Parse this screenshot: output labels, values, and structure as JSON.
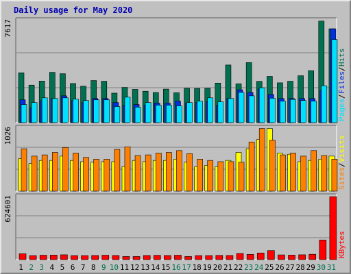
{
  "title": "Daily usage for May 2020",
  "colors": {
    "hits": "#007050",
    "files": "#0030e0",
    "pages": "#00e0ff",
    "visits": "#ffff00",
    "sites": "#ff8000",
    "kbytes": "#ff0000",
    "plot_bg": "#c0c0c0",
    "grid": "#808080",
    "weekday_label": "#000000",
    "weekend_label": "#007050"
  },
  "chart_data": [
    {
      "type": "bar",
      "name": "hits-files-pages",
      "ymax_label": "7617",
      "ylim": [
        0,
        7617
      ],
      "legend": [
        {
          "label": "Hits",
          "color": "#007050"
        },
        {
          "label": "Files",
          "color": "#0030e0"
        },
        {
          "label": "Pages",
          "color": "#00e0ff"
        }
      ],
      "categories": [
        "1",
        "2",
        "3",
        "4",
        "5",
        "6",
        "7",
        "8",
        "9",
        "10",
        "11",
        "12",
        "13",
        "14",
        "15",
        "16",
        "17",
        "18",
        "19",
        "20",
        "21",
        "22",
        "23",
        "24",
        "25",
        "26",
        "27",
        "28",
        "29",
        "30",
        "31"
      ],
      "weekend_days": [
        "2",
        "3",
        "9",
        "10",
        "16",
        "17",
        "23",
        "24",
        "30",
        "31"
      ],
      "series": [
        {
          "name": "Hits",
          "values": [
            3720,
            2800,
            3100,
            3750,
            3650,
            2920,
            2720,
            3140,
            3090,
            2200,
            2630,
            2480,
            2340,
            2250,
            2500,
            2230,
            2560,
            2550,
            2560,
            2950,
            4300,
            2900,
            4480,
            3080,
            3450,
            2970,
            3090,
            3500,
            3880,
            7580,
            7000
          ]
        },
        {
          "name": "Files",
          "values": [
            1700,
            1100,
            1650,
            1800,
            2000,
            1650,
            1500,
            1800,
            1800,
            1500,
            1300,
            1350,
            1300,
            1450,
            1450,
            1600,
            1450,
            1500,
            1550,
            1300,
            1800,
            2450,
            2250,
            2500,
            2100,
            1800,
            1800,
            1800,
            1800,
            2400,
            7000
          ]
        },
        {
          "name": "Pages",
          "values": [
            1350,
            1500,
            1850,
            1800,
            1850,
            1750,
            1650,
            1700,
            1700,
            1200,
            1900,
            1150,
            1500,
            1300,
            1300,
            1250,
            1500,
            1600,
            1850,
            1550,
            1800,
            2250,
            2000,
            2600,
            1820,
            1600,
            1730,
            1650,
            1600,
            2750,
            6200
          ]
        }
      ]
    },
    {
      "type": "bar",
      "name": "visits-sites",
      "ymax_label": "1026",
      "ylim": [
        0,
        1026
      ],
      "legend": [
        {
          "label": "Visits",
          "color": "#ffff00"
        },
        {
          "label": "Sites",
          "color": "#ff8000"
        }
      ],
      "categories": [
        "1",
        "2",
        "3",
        "4",
        "5",
        "6",
        "7",
        "8",
        "9",
        "10",
        "11",
        "12",
        "13",
        "14",
        "15",
        "16",
        "17",
        "18",
        "19",
        "20",
        "21",
        "22",
        "23",
        "24",
        "25",
        "26",
        "27",
        "28",
        "29",
        "30",
        "31"
      ],
      "series": [
        {
          "name": "Visits",
          "values": [
            530,
            450,
            500,
            500,
            570,
            500,
            480,
            470,
            480,
            480,
            400,
            500,
            480,
            500,
            500,
            520,
            470,
            400,
            420,
            400,
            500,
            630,
            690,
            840,
            1020,
            620,
            600,
            480,
            500,
            520,
            570
          ]
        },
        {
          "name": "Sites",
          "values": [
            690,
            570,
            590,
            630,
            710,
            620,
            550,
            520,
            520,
            680,
            720,
            580,
            590,
            620,
            630,
            660,
            610,
            520,
            500,
            480,
            480,
            470,
            800,
            1020,
            830,
            590,
            620,
            570,
            660,
            580,
            520
          ]
        }
      ]
    },
    {
      "type": "bar",
      "name": "kbytes",
      "ymax_label": "624601",
      "ylim": [
        0,
        624601
      ],
      "legend": [
        {
          "label": "KBytes",
          "color": "#ff0000"
        }
      ],
      "categories": [
        "1",
        "2",
        "3",
        "4",
        "5",
        "6",
        "7",
        "8",
        "9",
        "10",
        "11",
        "12",
        "13",
        "14",
        "15",
        "16",
        "17",
        "18",
        "19",
        "20",
        "21",
        "22",
        "23",
        "24",
        "25",
        "26",
        "27",
        "28",
        "29",
        "30",
        "31"
      ],
      "series": [
        {
          "name": "KBytes",
          "values": [
            58000,
            40000,
            44000,
            45000,
            48000,
            40000,
            40000,
            41000,
            44000,
            41000,
            31000,
            31000,
            41000,
            43000,
            41000,
            44000,
            31000,
            40000,
            40000,
            42000,
            41000,
            61000,
            52000,
            66000,
            90000,
            47000,
            45000,
            48000,
            53000,
            195000,
            624000
          ]
        }
      ]
    }
  ]
}
